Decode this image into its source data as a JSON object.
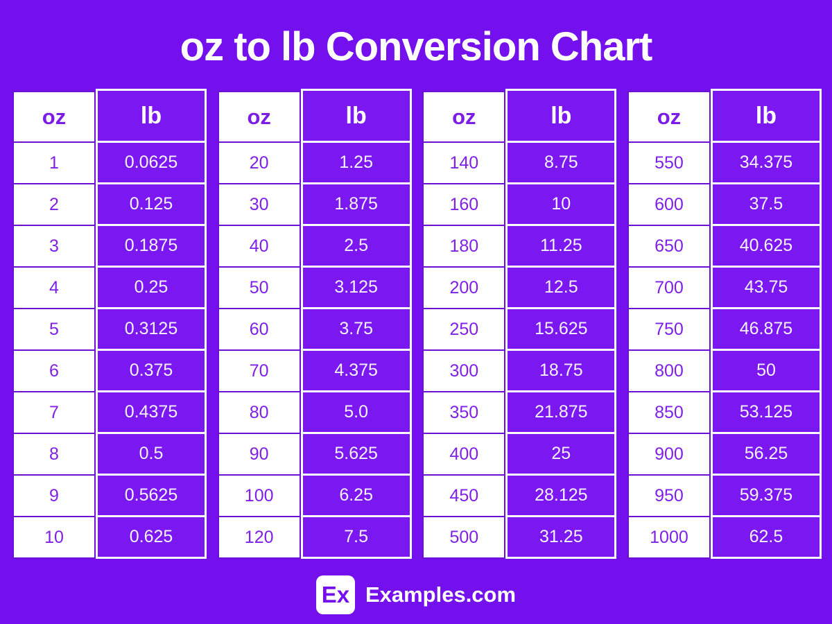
{
  "title": "oz to lb Conversion Chart",
  "colors": {
    "background": "#7410EE",
    "lb_cell_fill": "#7B17F0",
    "oz_cell_fill": "#FFFFFF",
    "oz_text": "#7F1FE8",
    "oz_cell_border": "#6A11D4",
    "lb_text": "#FFFFFF",
    "title_text": "#FFFFFF"
  },
  "tables": [
    {
      "oz_header": "oz",
      "lb_header": "lb",
      "rows": [
        [
          "1",
          "0.0625"
        ],
        [
          "2",
          "0.125"
        ],
        [
          "3",
          "0.1875"
        ],
        [
          "4",
          "0.25"
        ],
        [
          "5",
          "0.3125"
        ],
        [
          "6",
          "0.375"
        ],
        [
          "7",
          "0.4375"
        ],
        [
          "8",
          "0.5"
        ],
        [
          "9",
          "0.5625"
        ],
        [
          "10",
          "0.625"
        ]
      ]
    },
    {
      "oz_header": "oz",
      "lb_header": "lb",
      "rows": [
        [
          "20",
          "1.25"
        ],
        [
          "30",
          "1.875"
        ],
        [
          "40",
          "2.5"
        ],
        [
          "50",
          "3.125"
        ],
        [
          "60",
          "3.75"
        ],
        [
          "70",
          "4.375"
        ],
        [
          "80",
          "5.0"
        ],
        [
          "90",
          "5.625"
        ],
        [
          "100",
          "6.25"
        ],
        [
          "120",
          "7.5"
        ]
      ]
    },
    {
      "oz_header": "oz",
      "lb_header": "lb",
      "rows": [
        [
          "140",
          "8.75"
        ],
        [
          "160",
          "10"
        ],
        [
          "180",
          "11.25"
        ],
        [
          "200",
          "12.5"
        ],
        [
          "250",
          "15.625"
        ],
        [
          "300",
          "18.75"
        ],
        [
          "350",
          "21.875"
        ],
        [
          "400",
          "25"
        ],
        [
          "450",
          "28.125"
        ],
        [
          "500",
          "31.25"
        ]
      ]
    },
    {
      "oz_header": "oz",
      "lb_header": "lb",
      "rows": [
        [
          "550",
          "34.375"
        ],
        [
          "600",
          "37.5"
        ],
        [
          "650",
          "40.625"
        ],
        [
          "700",
          "43.75"
        ],
        [
          "750",
          "46.875"
        ],
        [
          "800",
          "50"
        ],
        [
          "850",
          "53.125"
        ],
        [
          "900",
          "56.25"
        ],
        [
          "950",
          "59.375"
        ],
        [
          "1000",
          "62.5"
        ]
      ]
    }
  ],
  "footer": {
    "logo_text": "Ex",
    "site_name": "Examples.com"
  },
  "chart_data": {
    "type": "table",
    "title": "oz to lb Conversion Chart",
    "columns": [
      "oz",
      "lb"
    ],
    "rows": [
      [
        1,
        0.0625
      ],
      [
        2,
        0.125
      ],
      [
        3,
        0.1875
      ],
      [
        4,
        0.25
      ],
      [
        5,
        0.3125
      ],
      [
        6,
        0.375
      ],
      [
        7,
        0.4375
      ],
      [
        8,
        0.5
      ],
      [
        9,
        0.5625
      ],
      [
        10,
        0.625
      ],
      [
        20,
        1.25
      ],
      [
        30,
        1.875
      ],
      [
        40,
        2.5
      ],
      [
        50,
        3.125
      ],
      [
        60,
        3.75
      ],
      [
        70,
        4.375
      ],
      [
        80,
        5.0
      ],
      [
        90,
        5.625
      ],
      [
        100,
        6.25
      ],
      [
        120,
        7.5
      ],
      [
        140,
        8.75
      ],
      [
        160,
        10
      ],
      [
        180,
        11.25
      ],
      [
        200,
        12.5
      ],
      [
        250,
        15.625
      ],
      [
        300,
        18.75
      ],
      [
        350,
        21.875
      ],
      [
        400,
        25
      ],
      [
        450,
        28.125
      ],
      [
        500,
        31.25
      ],
      [
        550,
        34.375
      ],
      [
        600,
        37.5
      ],
      [
        650,
        40.625
      ],
      [
        700,
        43.75
      ],
      [
        750,
        46.875
      ],
      [
        800,
        50
      ],
      [
        850,
        53.125
      ],
      [
        900,
        56.25
      ],
      [
        950,
        59.375
      ],
      [
        1000,
        62.5
      ]
    ],
    "conversion_factor_lb_per_oz": 0.0625
  }
}
